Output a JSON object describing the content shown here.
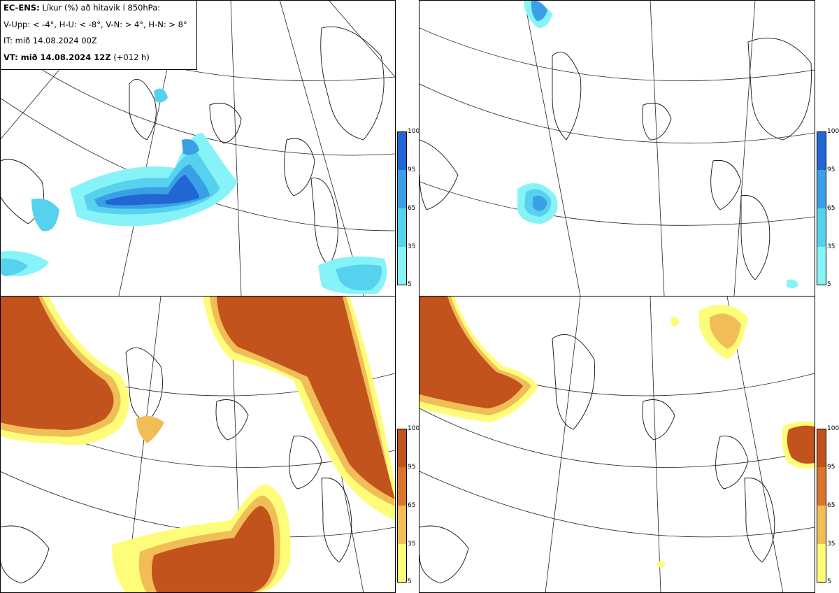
{
  "header": {
    "model": "EC-ENS:",
    "title_rest": "Líkur (%) að hitavik í 850hPa:",
    "thresholds": "V-Upp: < -4°, H-U: < -8°, V-N: > 4°, H-N: > 8°",
    "initial_time": "IT: mið 14.08.2024 00Z",
    "valid_time_bold": "VT: mið 14.08.2024 12Z",
    "valid_time_offset": "(+012 h)"
  },
  "panels": [
    {
      "key": "V-Upp",
      "scale": "blue"
    },
    {
      "key": "H-U",
      "scale": "blue"
    },
    {
      "key": "V-N",
      "scale": "orange"
    },
    {
      "key": "H-N",
      "scale": "orange"
    }
  ],
  "colorbar": {
    "ticks": [
      "100",
      "95",
      "65",
      "35",
      "5"
    ],
    "blue_colors": [
      "#86f3f8",
      "#57d2ee",
      "#3aa0e6",
      "#2166d2"
    ],
    "orange_colors": [
      "#fdfd7a",
      "#f1bd56",
      "#d9762e",
      "#c2531d"
    ]
  }
}
